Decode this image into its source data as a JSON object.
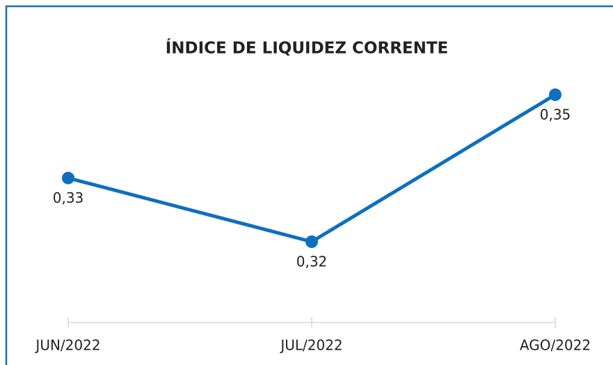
{
  "chart_data": {
    "type": "line",
    "title": "ÍNDICE DE LIQUIDEZ CORRENTE",
    "categories": [
      "JUN/2022",
      "JUL/2022",
      "AGO/2022"
    ],
    "series": [
      {
        "color": "#0f6fbf",
        "values": [
          0.333,
          0.32,
          0.35
        ],
        "value_labels": [
          "0,33",
          "0,32",
          "0,35"
        ]
      }
    ]
  }
}
